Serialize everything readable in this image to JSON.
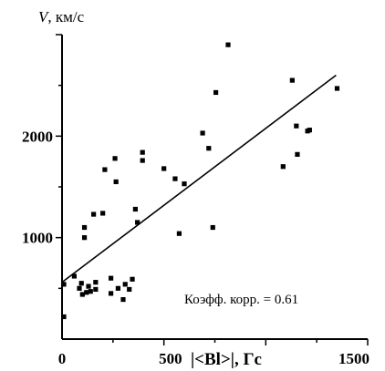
{
  "chart_data": {
    "type": "scatter",
    "ylabel_var": "V",
    "ylabel_unit": ", км/с",
    "xlabel": "|<Bl>|, Гс",
    "xlim": [
      0,
      1500
    ],
    "ylim": [
      0,
      3000
    ],
    "x_ticks": [
      "0",
      "500",
      "1500"
    ],
    "y_ticks": [
      "1000",
      "2000"
    ],
    "grid": false,
    "annotation": "Коэфф. корр. = 0.61",
    "regression": {
      "x": [
        0,
        1345
      ],
      "y": [
        560,
        2600
      ]
    },
    "points": [
      {
        "x": 0,
        "y": 540
      },
      {
        "x": 0,
        "y": 220
      },
      {
        "x": 60,
        "y": 620
      },
      {
        "x": 85,
        "y": 500
      },
      {
        "x": 95,
        "y": 550
      },
      {
        "x": 100,
        "y": 440
      },
      {
        "x": 110,
        "y": 1100
      },
      {
        "x": 110,
        "y": 1000
      },
      {
        "x": 120,
        "y": 460
      },
      {
        "x": 130,
        "y": 520
      },
      {
        "x": 140,
        "y": 470
      },
      {
        "x": 155,
        "y": 1230
      },
      {
        "x": 165,
        "y": 560
      },
      {
        "x": 165,
        "y": 490
      },
      {
        "x": 200,
        "y": 1240
      },
      {
        "x": 210,
        "y": 1670
      },
      {
        "x": 240,
        "y": 600
      },
      {
        "x": 240,
        "y": 450
      },
      {
        "x": 260,
        "y": 1780
      },
      {
        "x": 265,
        "y": 1550
      },
      {
        "x": 275,
        "y": 500
      },
      {
        "x": 300,
        "y": 390
      },
      {
        "x": 310,
        "y": 540
      },
      {
        "x": 330,
        "y": 490
      },
      {
        "x": 345,
        "y": 590
      },
      {
        "x": 360,
        "y": 1280
      },
      {
        "x": 370,
        "y": 1150
      },
      {
        "x": 395,
        "y": 1840
      },
      {
        "x": 395,
        "y": 1760
      },
      {
        "x": 500,
        "y": 1680
      },
      {
        "x": 555,
        "y": 1580
      },
      {
        "x": 575,
        "y": 1040
      },
      {
        "x": 600,
        "y": 1530
      },
      {
        "x": 690,
        "y": 2030
      },
      {
        "x": 720,
        "y": 1880
      },
      {
        "x": 740,
        "y": 1100
      },
      {
        "x": 755,
        "y": 2430
      },
      {
        "x": 815,
        "y": 2900
      },
      {
        "x": 1085,
        "y": 1700
      },
      {
        "x": 1130,
        "y": 2550
      },
      {
        "x": 1150,
        "y": 2100
      },
      {
        "x": 1155,
        "y": 1820
      },
      {
        "x": 1205,
        "y": 2050
      },
      {
        "x": 1215,
        "y": 2060
      },
      {
        "x": 1350,
        "y": 2470
      }
    ]
  }
}
